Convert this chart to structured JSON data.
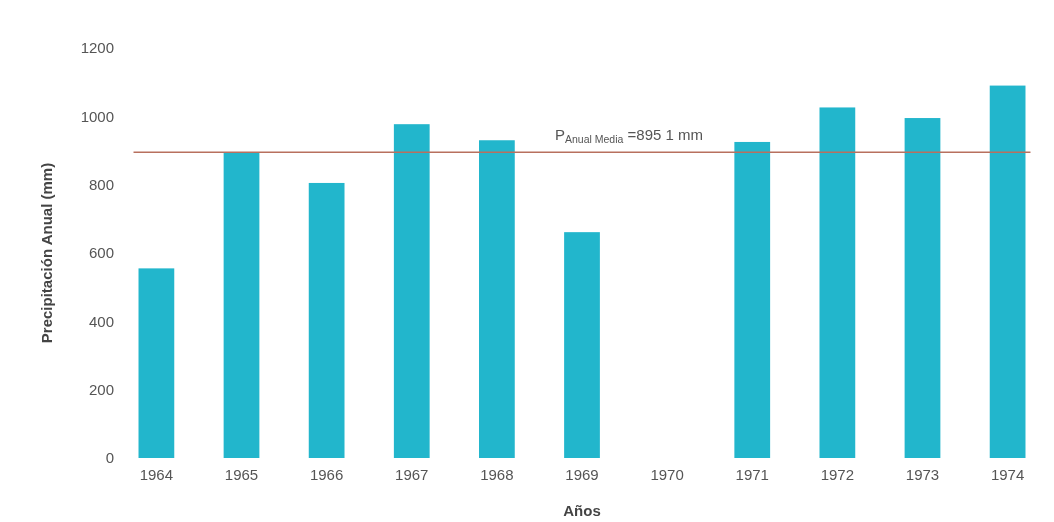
{
  "chart_data": {
    "type": "bar",
    "xlabel": "Años",
    "ylabel": "Precipitación Anual (mm)",
    "categories": [
      "1964",
      "1965",
      "1966",
      "1967",
      "1968",
      "1969",
      "1970",
      "1971",
      "1972",
      "1973",
      "1974"
    ],
    "values": [
      555,
      895,
      805,
      977,
      930,
      661,
      null,
      925,
      1026,
      995,
      1090
    ],
    "color": "#22b6cc",
    "ylim": [
      0,
      1200
    ],
    "yticks": [
      0,
      200,
      400,
      600,
      800,
      1000,
      1200
    ],
    "grid": false,
    "ref_lines": [
      {
        "axis": "y",
        "value": 895.1,
        "label": "P$_{Anual Media}$ =895 1 mm",
        "color": "#b8705e"
      }
    ]
  }
}
